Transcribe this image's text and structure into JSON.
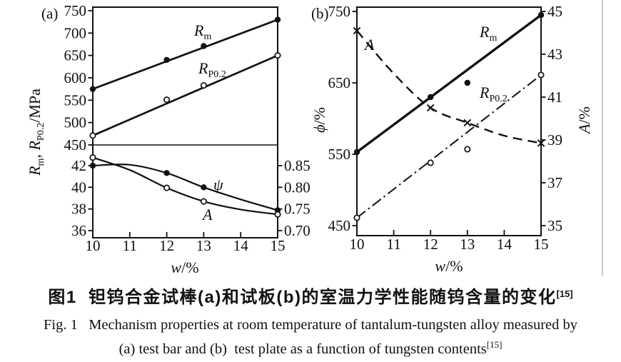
{
  "colors": {
    "ink": "#111111",
    "page_edge": "#c9c9c9"
  },
  "caption": {
    "zh": "图1  钽钨合金试棒(a)和试板(b)的室温力学性能随钨含量的变化",
    "zh_sup": "[15]",
    "en_line1": "Fig. 1   Mechanism properties at room temperature of tantalum-tungsten alloy measured by",
    "en_line2": "(a) test bar and (b)  test plate as a function of tungsten contents",
    "en_sup": "[15]"
  },
  "chart_data": [
    {
      "id": "panel-a",
      "type": "line",
      "tag": "(a)",
      "xlabel": {
        "sym": "w",
        "unit": "/%"
      },
      "xlim": [
        10,
        15
      ],
      "x_ticks": [
        10,
        11,
        12,
        13,
        14,
        15
      ],
      "ylabel": {
        "r1": "R",
        "s1": "m",
        "comma": ", ",
        "r2": "R",
        "s2": "P0.2",
        "unit": "/MPa"
      },
      "upper": {
        "ylim": [
          450,
          750
        ],
        "yticks": [
          750,
          700,
          650,
          600,
          550,
          500,
          450
        ],
        "series": [
          {
            "name": "Rm",
            "label": {
              "base": "R",
              "sub": "m"
            },
            "marker": "filled-circle",
            "line": "straight",
            "style": "solid",
            "x": [
              10,
              12,
              13,
              15
            ],
            "y": [
              575,
              640,
              671,
              730
            ]
          },
          {
            "name": "RP0.2",
            "label": {
              "base": "R",
              "sub": "P0.2"
            },
            "marker": "open-circle",
            "line": "straight",
            "style": "solid",
            "x": [
              10,
              12,
              13,
              15
            ],
            "y": [
              471,
              551,
              583,
              650
            ]
          }
        ]
      },
      "lower": {
        "ylim_left": [
          36,
          42
        ],
        "yticks_left": [
          42,
          40,
          38,
          36
        ],
        "ylim_right": [
          0.7,
          0.85
        ],
        "yticks_right": [
          "0.85",
          "0.80",
          "0.75",
          "0.70"
        ],
        "series": [
          {
            "name": "psi",
            "label": "ψ",
            "axis": "right",
            "marker": "filled-circle",
            "line": "curve",
            "style": "solid",
            "x": [
              10,
              12,
              13,
              15
            ],
            "y": [
              0.85,
              0.833,
              0.8,
              0.747
            ],
            "curve_x": [
              10,
              11,
              12,
              13,
              14,
              15
            ],
            "curve_y": [
              0.85,
              0.852,
              0.833,
              0.8,
              0.772,
              0.747
            ]
          },
          {
            "name": "A",
            "label": "A",
            "axis": "left",
            "marker": "open-circle",
            "line": "curve",
            "style": "solid",
            "x": [
              10,
              12,
              13,
              15
            ],
            "y": [
              42.75,
              39.95,
              38.7,
              37.5
            ],
            "curve_x": [
              10,
              11,
              12,
              13,
              14,
              15
            ],
            "curve_y": [
              42.75,
              41.6,
              39.95,
              38.7,
              37.95,
              37.5
            ]
          }
        ]
      }
    },
    {
      "id": "panel-b",
      "type": "line",
      "tag": "(b)",
      "xlabel": {
        "sym": "w",
        "unit": "/%"
      },
      "xlim": [
        10,
        15
      ],
      "x_ticks": [
        10,
        11,
        12,
        13,
        14,
        15
      ],
      "ylabel_left": {
        "sym": "ϕ",
        "unit": "/%"
      },
      "ylabel_right": {
        "sym": "A",
        "unit": "/%"
      },
      "ylim_left": [
        450,
        750
      ],
      "yticks_left": [
        750,
        650,
        550,
        450
      ],
      "ylim_right": [
        35,
        45
      ],
      "yticks_right": [
        45,
        43,
        41,
        39,
        37,
        35
      ],
      "series": [
        {
          "name": "Rm",
          "label": {
            "base": "R",
            "sub": "m"
          },
          "axis": "left",
          "marker": "filled-circle",
          "line": "straight",
          "style": "solid",
          "x": [
            10,
            12,
            13,
            15
          ],
          "y": [
            553,
            630,
            650,
            745
          ]
        },
        {
          "name": "A",
          "label": "A",
          "axis": "right",
          "marker": "x",
          "line": "curve",
          "style": "dashed",
          "x": [
            10,
            12,
            13,
            15
          ],
          "y": [
            44.1,
            40.5,
            39.8,
            38.85
          ],
          "curve_x": [
            10,
            11,
            12,
            13,
            14,
            15
          ],
          "curve_y": [
            44.1,
            42.1,
            40.5,
            39.8,
            39.2,
            38.85
          ]
        },
        {
          "name": "RP0.2",
          "label": {
            "base": "R",
            "sub": "P0.2"
          },
          "axis": "left",
          "marker": "open-circle",
          "line": "straight",
          "style": "dashdot",
          "x": [
            10,
            12,
            13,
            15
          ],
          "y": [
            461,
            538,
            557,
            661
          ]
        }
      ]
    }
  ]
}
